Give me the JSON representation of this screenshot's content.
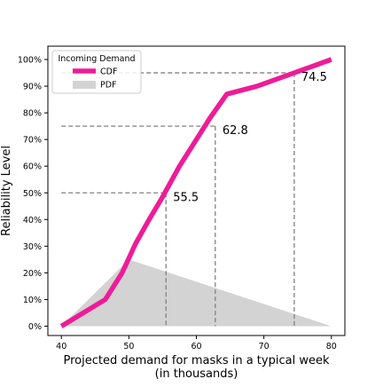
{
  "chart_data": {
    "type": "line",
    "xlabel": "Projected demand for masks in a typical week",
    "xlabel_line2": "(in thousands)",
    "ylabel": "Reliability Level",
    "xlim": [
      38,
      82
    ],
    "ylim": [
      -3.5,
      105
    ],
    "x_ticks": [
      40,
      50,
      60,
      70,
      80
    ],
    "x_tick_labels": [
      "40",
      "50",
      "60",
      "70",
      "80"
    ],
    "y_ticks": [
      0,
      10,
      20,
      30,
      40,
      50,
      60,
      70,
      80,
      90,
      100
    ],
    "y_tick_labels": [
      "0%",
      "10%",
      "20%",
      "30%",
      "40%",
      "50%",
      "60%",
      "70%",
      "80%",
      "90%",
      "100%"
    ],
    "grid": false,
    "legend": {
      "title": "Incoming Demand",
      "placement": "top-left",
      "entries": [
        {
          "label": "CDF",
          "kind": "line",
          "color": "#ee1c97"
        },
        {
          "label": "PDF",
          "kind": "patch",
          "color": "#d3d3d3"
        }
      ]
    },
    "series": [
      {
        "name": "CDF",
        "kind": "line",
        "color": "#ee1c97",
        "x": [
          40,
          46.5,
          49,
          51,
          53,
          55,
          57.5,
          60,
          62,
          64.5,
          69,
          74.5,
          80
        ],
        "y": [
          0,
          10,
          20,
          31,
          40,
          48.5,
          60,
          70,
          78,
          87,
          90,
          95,
          100
        ]
      },
      {
        "name": "PDF",
        "kind": "area",
        "color": "#d3d3d3",
        "x": [
          40,
          50,
          80
        ],
        "y": [
          0,
          25,
          0
        ]
      }
    ],
    "reference_lines": [
      {
        "x": 55.5,
        "y": 50,
        "label": "55.5"
      },
      {
        "x": 62.8,
        "y": 75,
        "label": "62.8"
      },
      {
        "x": 74.5,
        "y": 95,
        "label": "74.5"
      }
    ],
    "reference_line_x_start": 40,
    "reference_line_color": "#808080"
  }
}
